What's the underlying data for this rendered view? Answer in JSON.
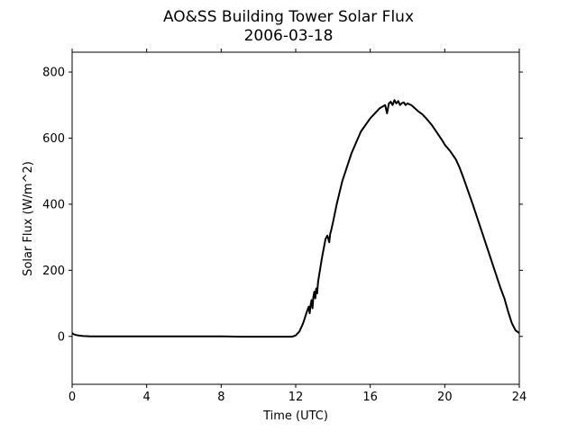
{
  "chart_data": {
    "type": "line",
    "title": "AO&SS Building Tower Solar Flux",
    "subtitle": "2006-03-18",
    "xlabel": "Time (UTC)",
    "ylabel": "Solar Flux (W/m^2)",
    "xlim": [
      0,
      24
    ],
    "ylim": [
      -145,
      860
    ],
    "xticks": [
      0,
      4,
      8,
      12,
      16,
      20,
      24
    ],
    "yticks": [
      0,
      200,
      400,
      600,
      800
    ],
    "grid": false,
    "line_color": "#000000",
    "series": [
      {
        "x": [
          0,
          0.1,
          0.3,
          0.6,
          1,
          2,
          4,
          6,
          8,
          9,
          10,
          11,
          11.5,
          11.8,
          12.0,
          12.2,
          12.4,
          12.6,
          12.7,
          12.75,
          12.8,
          12.85,
          12.9,
          12.95,
          13.0,
          13.05,
          13.1,
          13.15,
          13.2,
          13.3,
          13.4,
          13.5,
          13.6,
          13.7,
          13.8,
          13.85,
          13.9,
          14.0,
          14.2,
          14.5,
          15.0,
          15.5,
          16.0,
          16.5,
          16.8,
          16.9,
          17.0,
          17.1,
          17.2,
          17.3,
          17.4,
          17.5,
          17.6,
          17.7,
          17.8,
          17.9,
          18.0,
          18.2,
          18.4,
          18.6,
          18.8,
          19.0,
          19.3,
          19.6,
          19.9,
          20.0,
          20.3,
          20.6,
          20.8,
          21.0,
          21.5,
          22.0,
          22.5,
          23.0,
          23.2,
          23.4,
          23.6,
          23.8,
          24.0
        ],
        "y": [
          10,
          6,
          3,
          1,
          0,
          0,
          0,
          0,
          0,
          -1,
          -1,
          -1,
          -1,
          -1,
          3,
          15,
          40,
          75,
          90,
          70,
          95,
          110,
          85,
          120,
          135,
          115,
          145,
          130,
          165,
          200,
          235,
          265,
          295,
          305,
          285,
          310,
          320,
          345,
          400,
          470,
          555,
          620,
          660,
          690,
          700,
          675,
          705,
          710,
          700,
          715,
          705,
          712,
          700,
          706,
          708,
          700,
          705,
          700,
          690,
          680,
          672,
          660,
          640,
          615,
          590,
          580,
          560,
          535,
          510,
          480,
          400,
          315,
          230,
          145,
          115,
          75,
          40,
          18,
          10
        ]
      }
    ]
  }
}
